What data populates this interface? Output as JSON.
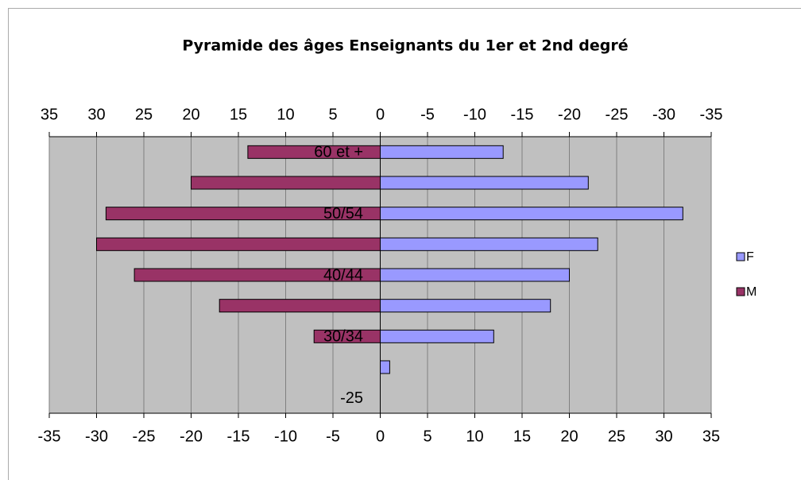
{
  "chart_data": {
    "type": "bar",
    "orientation": "horizontal",
    "title": "Pyramide des âges Enseignants du 1er et 2nd degré",
    "categories": [
      "60 et +",
      null,
      "50/54",
      null,
      "40/44",
      null,
      "30/34",
      null,
      "-25"
    ],
    "series": [
      {
        "name": "F",
        "color": "#9999ff",
        "axis": "x",
        "values": [
          13,
          22,
          32,
          23,
          20,
          18,
          12,
          1,
          0
        ]
      },
      {
        "name": "M",
        "color": "#993366",
        "axis": "x2",
        "values": [
          14,
          20,
          29,
          30,
          26,
          17,
          7,
          0,
          0
        ]
      }
    ],
    "xlim": [
      -35,
      35
    ],
    "xticks": [
      -35,
      -30,
      -25,
      -20,
      -15,
      -10,
      -5,
      0,
      5,
      10,
      15,
      20,
      25,
      30,
      35
    ],
    "x2lim": [
      35,
      -35
    ],
    "x2ticks": [
      35,
      30,
      25,
      20,
      15,
      10,
      5,
      0,
      -5,
      -10,
      -15,
      -20,
      -25,
      -30,
      -35
    ],
    "grid": true,
    "legend": "right"
  }
}
